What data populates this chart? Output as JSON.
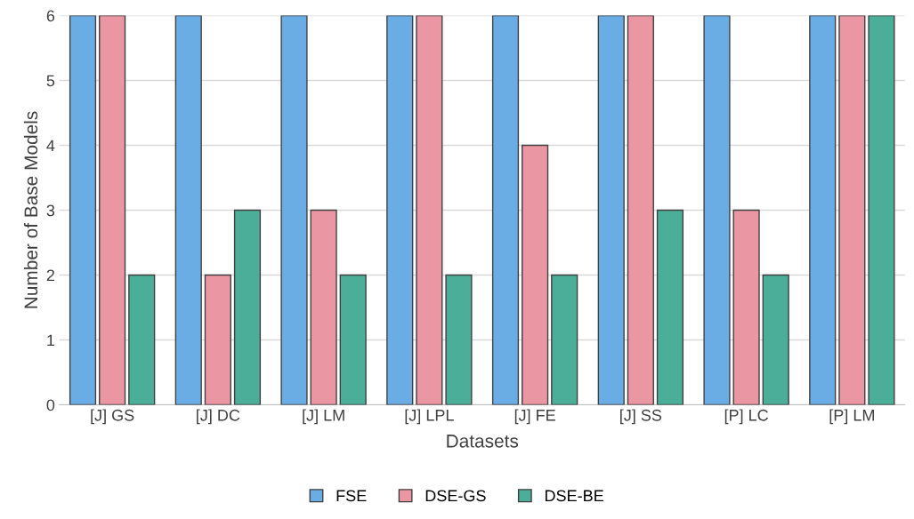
{
  "chart_data": {
    "type": "bar",
    "xlabel": "Datasets",
    "ylabel": "Number of Base Models",
    "categories": [
      "[J] GS",
      "[J] DC",
      "[J] LM",
      "[J] LPL",
      "[J] FE",
      "[J] SS",
      "[P] LC",
      "[P] LM"
    ],
    "series": [
      {
        "name": "FSE",
        "color": "#6aade4",
        "values": [
          6,
          6,
          6,
          6,
          6,
          6,
          6,
          6
        ]
      },
      {
        "name": "DSE-GS",
        "color": "#ea96a3",
        "values": [
          6,
          2,
          3,
          6,
          4,
          6,
          3,
          6
        ]
      },
      {
        "name": "DSE-BE",
        "color": "#4aae98",
        "values": [
          2,
          3,
          2,
          2,
          2,
          3,
          2,
          6
        ]
      }
    ],
    "ylim": [
      0,
      6
    ],
    "yticks": [
      0,
      1,
      2,
      3,
      4,
      5,
      6
    ],
    "grid": "y",
    "legend": "bottom"
  }
}
